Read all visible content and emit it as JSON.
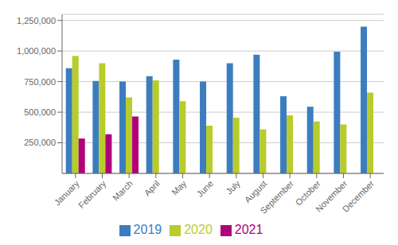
{
  "chart_data": {
    "type": "bar",
    "categories": [
      "January",
      "February",
      "March",
      "April",
      "May",
      "June",
      "July",
      "August",
      "September",
      "October",
      "November",
      "December"
    ],
    "series": [
      {
        "name": "2019",
        "color": "#3c7dbf",
        "values": [
          860000,
          755000,
          750000,
          795000,
          930000,
          750000,
          900000,
          970000,
          630000,
          545000,
          995000,
          1200000
        ]
      },
      {
        "name": "2020",
        "color": "#b8cc2c",
        "values": [
          960000,
          900000,
          620000,
          760000,
          590000,
          390000,
          455000,
          360000,
          475000,
          425000,
          400000,
          660000
        ]
      },
      {
        "name": "2021",
        "color": "#b0007a",
        "values": [
          285000,
          320000,
          465000,
          null,
          null,
          null,
          null,
          null,
          null,
          null,
          null,
          null
        ]
      }
    ],
    "ylim": [
      0,
      1300000
    ],
    "yticks": [
      {
        "value": 250000,
        "label": "250,000"
      },
      {
        "value": 500000,
        "label": "500,000"
      },
      {
        "value": 750000,
        "label": "750,000"
      },
      {
        "value": 1000000,
        "label": "1,000,000"
      },
      {
        "value": 1250000,
        "label": "1,250,000"
      }
    ],
    "grid": true,
    "legend": "bottom"
  }
}
